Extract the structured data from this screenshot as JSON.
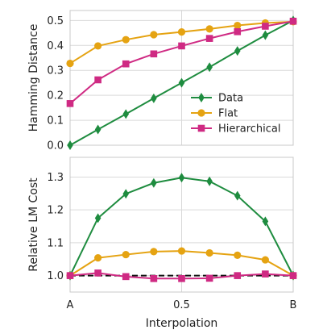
{
  "chart_data": [
    {
      "type": "line",
      "ylabel": "Hamming Distance",
      "xlim": [
        0,
        1
      ],
      "ylim": [
        0,
        0.54
      ],
      "grid": true,
      "legend": "lower-right",
      "yticks": [
        0.0,
        0.1,
        0.2,
        0.3,
        0.4,
        0.5
      ],
      "ytick_labels": [
        "0.0",
        "0.1",
        "0.2",
        "0.3",
        "0.4",
        "0.5"
      ],
      "x": [
        0,
        0.125,
        0.25,
        0.375,
        0.5,
        0.625,
        0.75,
        0.875,
        1
      ],
      "series": [
        {
          "name": "Data",
          "color": "#1e8c3f",
          "marker": "diamond",
          "values": [
            0.0,
            0.063,
            0.125,
            0.188,
            0.25,
            0.313,
            0.378,
            0.441,
            0.5
          ]
        },
        {
          "name": "Flat",
          "color": "#e5a312",
          "marker": "circle",
          "values": [
            0.328,
            0.398,
            0.423,
            0.443,
            0.454,
            0.466,
            0.48,
            0.49,
            0.495
          ]
        },
        {
          "name": "Hierarchical",
          "color": "#cf2a83",
          "marker": "square",
          "values": [
            0.167,
            0.262,
            0.326,
            0.366,
            0.398,
            0.428,
            0.455,
            0.477,
            0.497
          ]
        }
      ]
    },
    {
      "type": "line",
      "ylabel": "Relative LM Cost",
      "xlabel": "Interpolation",
      "xlim": [
        0,
        1
      ],
      "ylim": [
        0.95,
        1.36
      ],
      "grid": true,
      "xticks": [
        0,
        0.5,
        1
      ],
      "xtick_labels": [
        "A",
        "0.5",
        "B"
      ],
      "yticks": [
        1.0,
        1.1,
        1.2,
        1.3
      ],
      "ytick_labels": [
        "1.0",
        "1.1",
        "1.2",
        "1.3"
      ],
      "baseline": {
        "y": 1.0,
        "color": "#111111",
        "style": "dashed"
      },
      "x": [
        0,
        0.125,
        0.25,
        0.375,
        0.5,
        0.625,
        0.75,
        0.875,
        1
      ],
      "series": [
        {
          "name": "Data",
          "color": "#1e8c3f",
          "marker": "diamond",
          "values": [
            1.0,
            1.175,
            1.249,
            1.282,
            1.298,
            1.287,
            1.243,
            1.165,
            1.0
          ]
        },
        {
          "name": "Flat",
          "color": "#e5a312",
          "marker": "circle",
          "values": [
            1.0,
            1.054,
            1.064,
            1.073,
            1.075,
            1.069,
            1.062,
            1.048,
            1.0
          ]
        },
        {
          "name": "Hierarchical",
          "color": "#cf2a83",
          "marker": "square",
          "values": [
            1.0,
            1.008,
            0.997,
            0.991,
            0.991,
            0.992,
            1.0,
            1.005,
            1.0
          ]
        }
      ]
    }
  ]
}
